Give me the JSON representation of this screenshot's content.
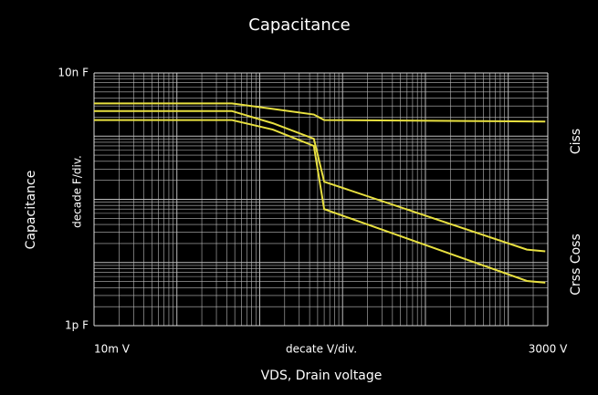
{
  "chart_data": {
    "type": "line",
    "title": "Capacitance",
    "y_label": "Capacitance",
    "y_scale_label": "decade F/div.",
    "x_label": "VDS, Drain voltage",
    "x_scale_label": "decate V/div.",
    "right_labels": [
      "Ciss",
      "Crss Coss"
    ],
    "log_x": true,
    "log_y": true,
    "grid": true,
    "minor_grid": true,
    "xlim": [
      0.01,
      3000
    ],
    "ylim": [
      1e-12,
      1e-08
    ],
    "xticks": [
      {
        "value": 0.01,
        "label": "10m V"
      },
      {
        "value": 3000,
        "label": "3000 V"
      }
    ],
    "yticks": [
      {
        "value": 1e-12,
        "label": "1p F"
      },
      {
        "value": 1e-08,
        "label": "10n F"
      }
    ],
    "series": [
      {
        "color": "#e8e040",
        "x": [
          0.01,
          0.46,
          1.44,
          4.5,
          6,
          2800
        ],
        "values": [
          3.3e-09,
          3.3e-09,
          2.7e-09,
          2.2e-09,
          1.8e-09,
          1.7e-09
        ]
      },
      {
        "color": "#e8e040",
        "x": [
          0.01,
          0.46,
          1.44,
          4.5,
          6,
          1680,
          2800
        ],
        "values": [
          2.5e-09,
          2.5e-09,
          1.6e-09,
          9.1e-10,
          1.9e-10,
          1.6e-11,
          1.5e-11
        ]
      },
      {
        "color": "#e8e040",
        "x": [
          0.01,
          0.46,
          1.44,
          4.5,
          6,
          1680,
          2800
        ],
        "values": [
          1.8e-09,
          1.8e-09,
          1.27e-09,
          7e-10,
          7e-11,
          5.1e-12,
          4.8e-12
        ]
      }
    ]
  }
}
